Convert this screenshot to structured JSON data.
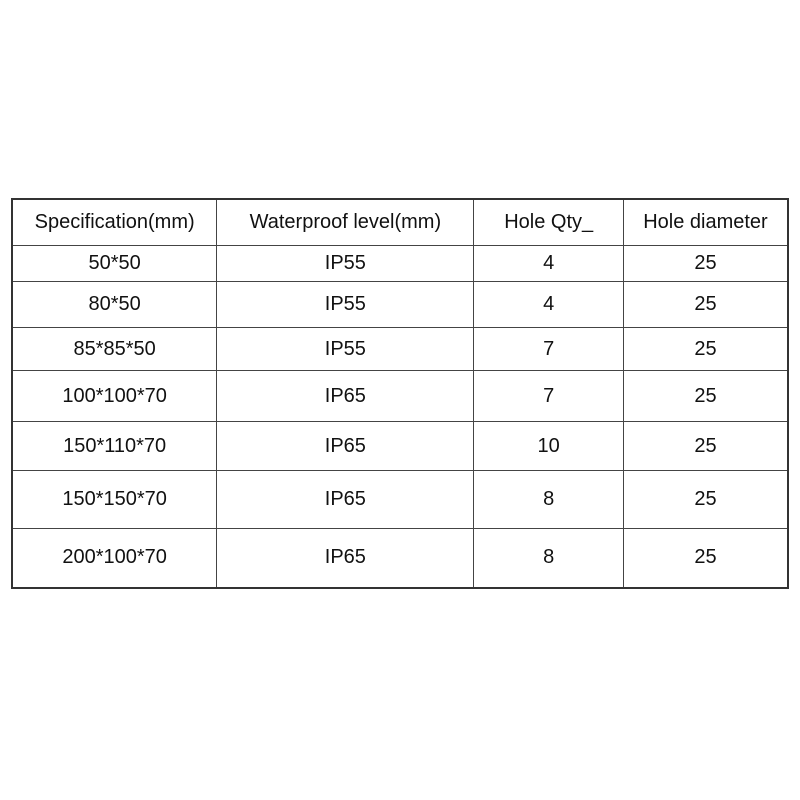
{
  "table": {
    "headers": [
      "Specification(mm)",
      "Waterproof level(mm)",
      "Hole Qty_",
      "Hole diameter"
    ],
    "rows": [
      [
        "50*50",
        "IP55",
        "4",
        "25"
      ],
      [
        "80*50",
        "IP55",
        "4",
        "25"
      ],
      [
        "85*85*50",
        "IP55",
        "7",
        "25"
      ],
      [
        "100*100*70",
        "IP65",
        "7",
        "25"
      ],
      [
        "150*110*70",
        "IP65",
        "10",
        "25"
      ],
      [
        "150*150*70",
        "IP65",
        "8",
        "25"
      ],
      [
        "200*100*70",
        "IP65",
        "8",
        "25"
      ]
    ]
  }
}
